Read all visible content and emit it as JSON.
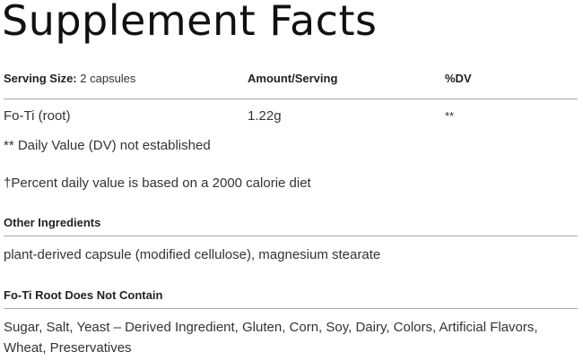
{
  "title": "Supplement Facts",
  "table": {
    "serving_size_label": "Serving Size:",
    "serving_size_value": "2 capsules",
    "amount_header": "Amount/Serving",
    "dv_header": "%DV",
    "rows": [
      {
        "name": "Fo-Ti (root)",
        "amount": "1.22g",
        "dv": "**"
      }
    ]
  },
  "footnotes": [
    "** Daily Value (DV) not established",
    "†Percent daily value is based on a 2000 calorie diet"
  ],
  "other_ingredients": {
    "heading": "Other Ingredients",
    "text": "plant-derived capsule (modified cellulose), magnesium stearate"
  },
  "does_not_contain": {
    "heading": "Fo-Ti Root Does Not Contain",
    "line1": "Sugar, Salt, Yeast – Derived Ingredient, Gluten, Corn, Soy, Dairy, Colors, Artificial Flavors,",
    "line2": "Wheat, Preservatives"
  }
}
